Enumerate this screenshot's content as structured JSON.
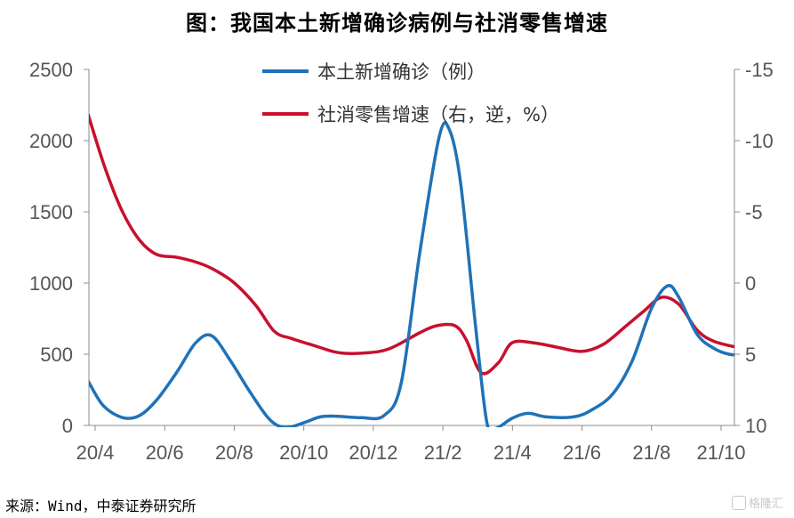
{
  "chart_data": {
    "type": "line",
    "title": "图：我国本土新增确诊病例与社消零售增速",
    "x_labels": [
      "20/4",
      "20/6",
      "20/8",
      "20/10",
      "20/12",
      "21/2",
      "21/4",
      "21/6",
      "21/8",
      "21/10"
    ],
    "y_left": {
      "range": [
        0,
        2500
      ],
      "ticks": [
        0,
        500,
        1000,
        1500,
        2000,
        2500
      ]
    },
    "y_right": {
      "range": [
        10,
        -15
      ],
      "inverted": true,
      "ticks": [
        -15,
        -10,
        -5,
        0,
        5,
        10
      ]
    },
    "series": [
      {
        "name": "本土新增确诊（例）",
        "axis": "left",
        "color": "#1f72b8",
        "x": [
          "2020-03-26",
          "2020-04-08",
          "2020-04-25",
          "2020-05-10",
          "2020-05-25",
          "2020-06-12",
          "2020-06-28",
          "2020-07-12",
          "2020-07-28",
          "2020-08-15",
          "2020-09-01",
          "2020-09-15",
          "2020-10-01",
          "2020-10-15",
          "2020-10-28",
          "2020-11-20",
          "2020-12-10",
          "2020-12-25",
          "2021-01-10",
          "2021-01-27",
          "2021-02-05",
          "2021-02-15",
          "2021-02-28",
          "2021-03-10",
          "2021-03-18",
          "2021-04-01",
          "2021-04-15",
          "2021-05-01",
          "2021-05-25",
          "2021-06-10",
          "2021-06-28",
          "2021-07-15",
          "2021-08-01",
          "2021-08-15",
          "2021-08-25",
          "2021-09-10",
          "2021-09-25",
          "2021-10-08",
          "2021-10-20"
        ],
        "values": [
          310,
          140,
          55,
          70,
          180,
          380,
          580,
          630,
          460,
          230,
          40,
          -15,
          20,
          60,
          65,
          55,
          70,
          300,
          1200,
          2020,
          2080,
          1700,
          700,
          20,
          -20,
          50,
          85,
          60,
          60,
          110,
          220,
          450,
          820,
          980,
          900,
          640,
          540,
          500,
          495
        ]
      },
      {
        "name": "社消零售增速（右，逆，%）",
        "axis": "right",
        "color": "#c8102e",
        "x": [
          "2020-03-26",
          "2020-04-10",
          "2020-04-25",
          "2020-05-10",
          "2020-05-25",
          "2020-06-12",
          "2020-07-01",
          "2020-07-15",
          "2020-08-01",
          "2020-08-20",
          "2020-09-05",
          "2020-09-20",
          "2020-10-10",
          "2020-11-01",
          "2020-11-25",
          "2020-12-15",
          "2021-01-10",
          "2021-01-25",
          "2021-02-10",
          "2021-02-20",
          "2021-03-05",
          "2021-03-20",
          "2021-04-01",
          "2021-04-20",
          "2021-05-10",
          "2021-06-01",
          "2021-06-20",
          "2021-07-10",
          "2021-07-25",
          "2021-08-10",
          "2021-08-25",
          "2021-09-10",
          "2021-09-25",
          "2021-10-20"
        ],
        "values": [
          -11.8,
          -8.0,
          -5.0,
          -3.0,
          -2.0,
          -1.8,
          -1.4,
          -0.9,
          0.0,
          1.6,
          3.4,
          3.9,
          4.4,
          4.9,
          4.9,
          4.6,
          3.5,
          3.0,
          3.0,
          4.0,
          6.3,
          5.6,
          4.2,
          4.2,
          4.5,
          4.8,
          4.3,
          3.0,
          2.0,
          1.0,
          1.5,
          3.3,
          4.1,
          4.6
        ]
      }
    ],
    "legend_position": "top-center",
    "grid": false
  },
  "footer": {
    "source": "来源：Wind，中泰证券研究所",
    "watermark": "格隆汇"
  }
}
